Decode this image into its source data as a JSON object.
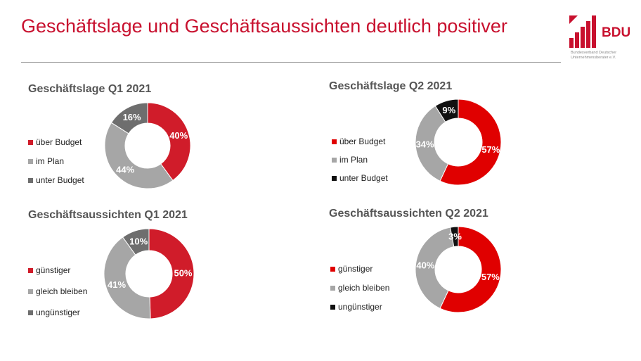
{
  "slide": {
    "title": "Geschäftslage und Geschäftsaussichten deutlich positiver",
    "title_color": "#c8102e"
  },
  "logo": {
    "text": "BDU",
    "subtitle_line1": "Bundesverband Deutscher",
    "subtitle_line2": "Unternehmensberater e.V.",
    "color": "#c8102e"
  },
  "colors": {
    "red": "#e00000",
    "light_red": "#d01c2a",
    "gray": "#a6a6a6",
    "dark_gray": "#6e6e6e",
    "black": "#111111"
  },
  "chart_data": [
    {
      "type": "pie",
      "title": "Geschäftslage Q1 2021",
      "categories": [
        "über Budget",
        "im Plan",
        "unter Budget"
      ],
      "values": [
        40,
        44,
        16
      ],
      "labels": [
        "40%",
        "44%",
        "16%"
      ],
      "colors": [
        "#d01c2a",
        "#a6a6a6",
        "#6e6e6e"
      ],
      "legend_position": "left"
    },
    {
      "type": "pie",
      "title": "Geschäftslage Q2 2021",
      "categories": [
        "über Budget",
        "im Plan",
        "unter Budget"
      ],
      "values": [
        57,
        34,
        9
      ],
      "labels": [
        "57%",
        "34%",
        "9%"
      ],
      "colors": [
        "#e00000",
        "#a6a6a6",
        "#111111"
      ],
      "legend_position": "left"
    },
    {
      "type": "pie",
      "title": "Geschäftsaussichten Q1 2021",
      "categories": [
        "günstiger",
        "gleich bleiben",
        "ungünstiger"
      ],
      "values": [
        50,
        41,
        10
      ],
      "labels": [
        "50%",
        "41%",
        "10%"
      ],
      "colors": [
        "#d01c2a",
        "#a6a6a6",
        "#6e6e6e"
      ],
      "legend_position": "left"
    },
    {
      "type": "pie",
      "title": "Geschäftsaussichten Q2 2021",
      "categories": [
        "günstiger",
        "gleich bleiben",
        "ungünstiger"
      ],
      "values": [
        57,
        40,
        3
      ],
      "labels": [
        "57%",
        "40%",
        "3%"
      ],
      "colors": [
        "#e00000",
        "#a6a6a6",
        "#111111"
      ],
      "legend_position": "left"
    }
  ]
}
